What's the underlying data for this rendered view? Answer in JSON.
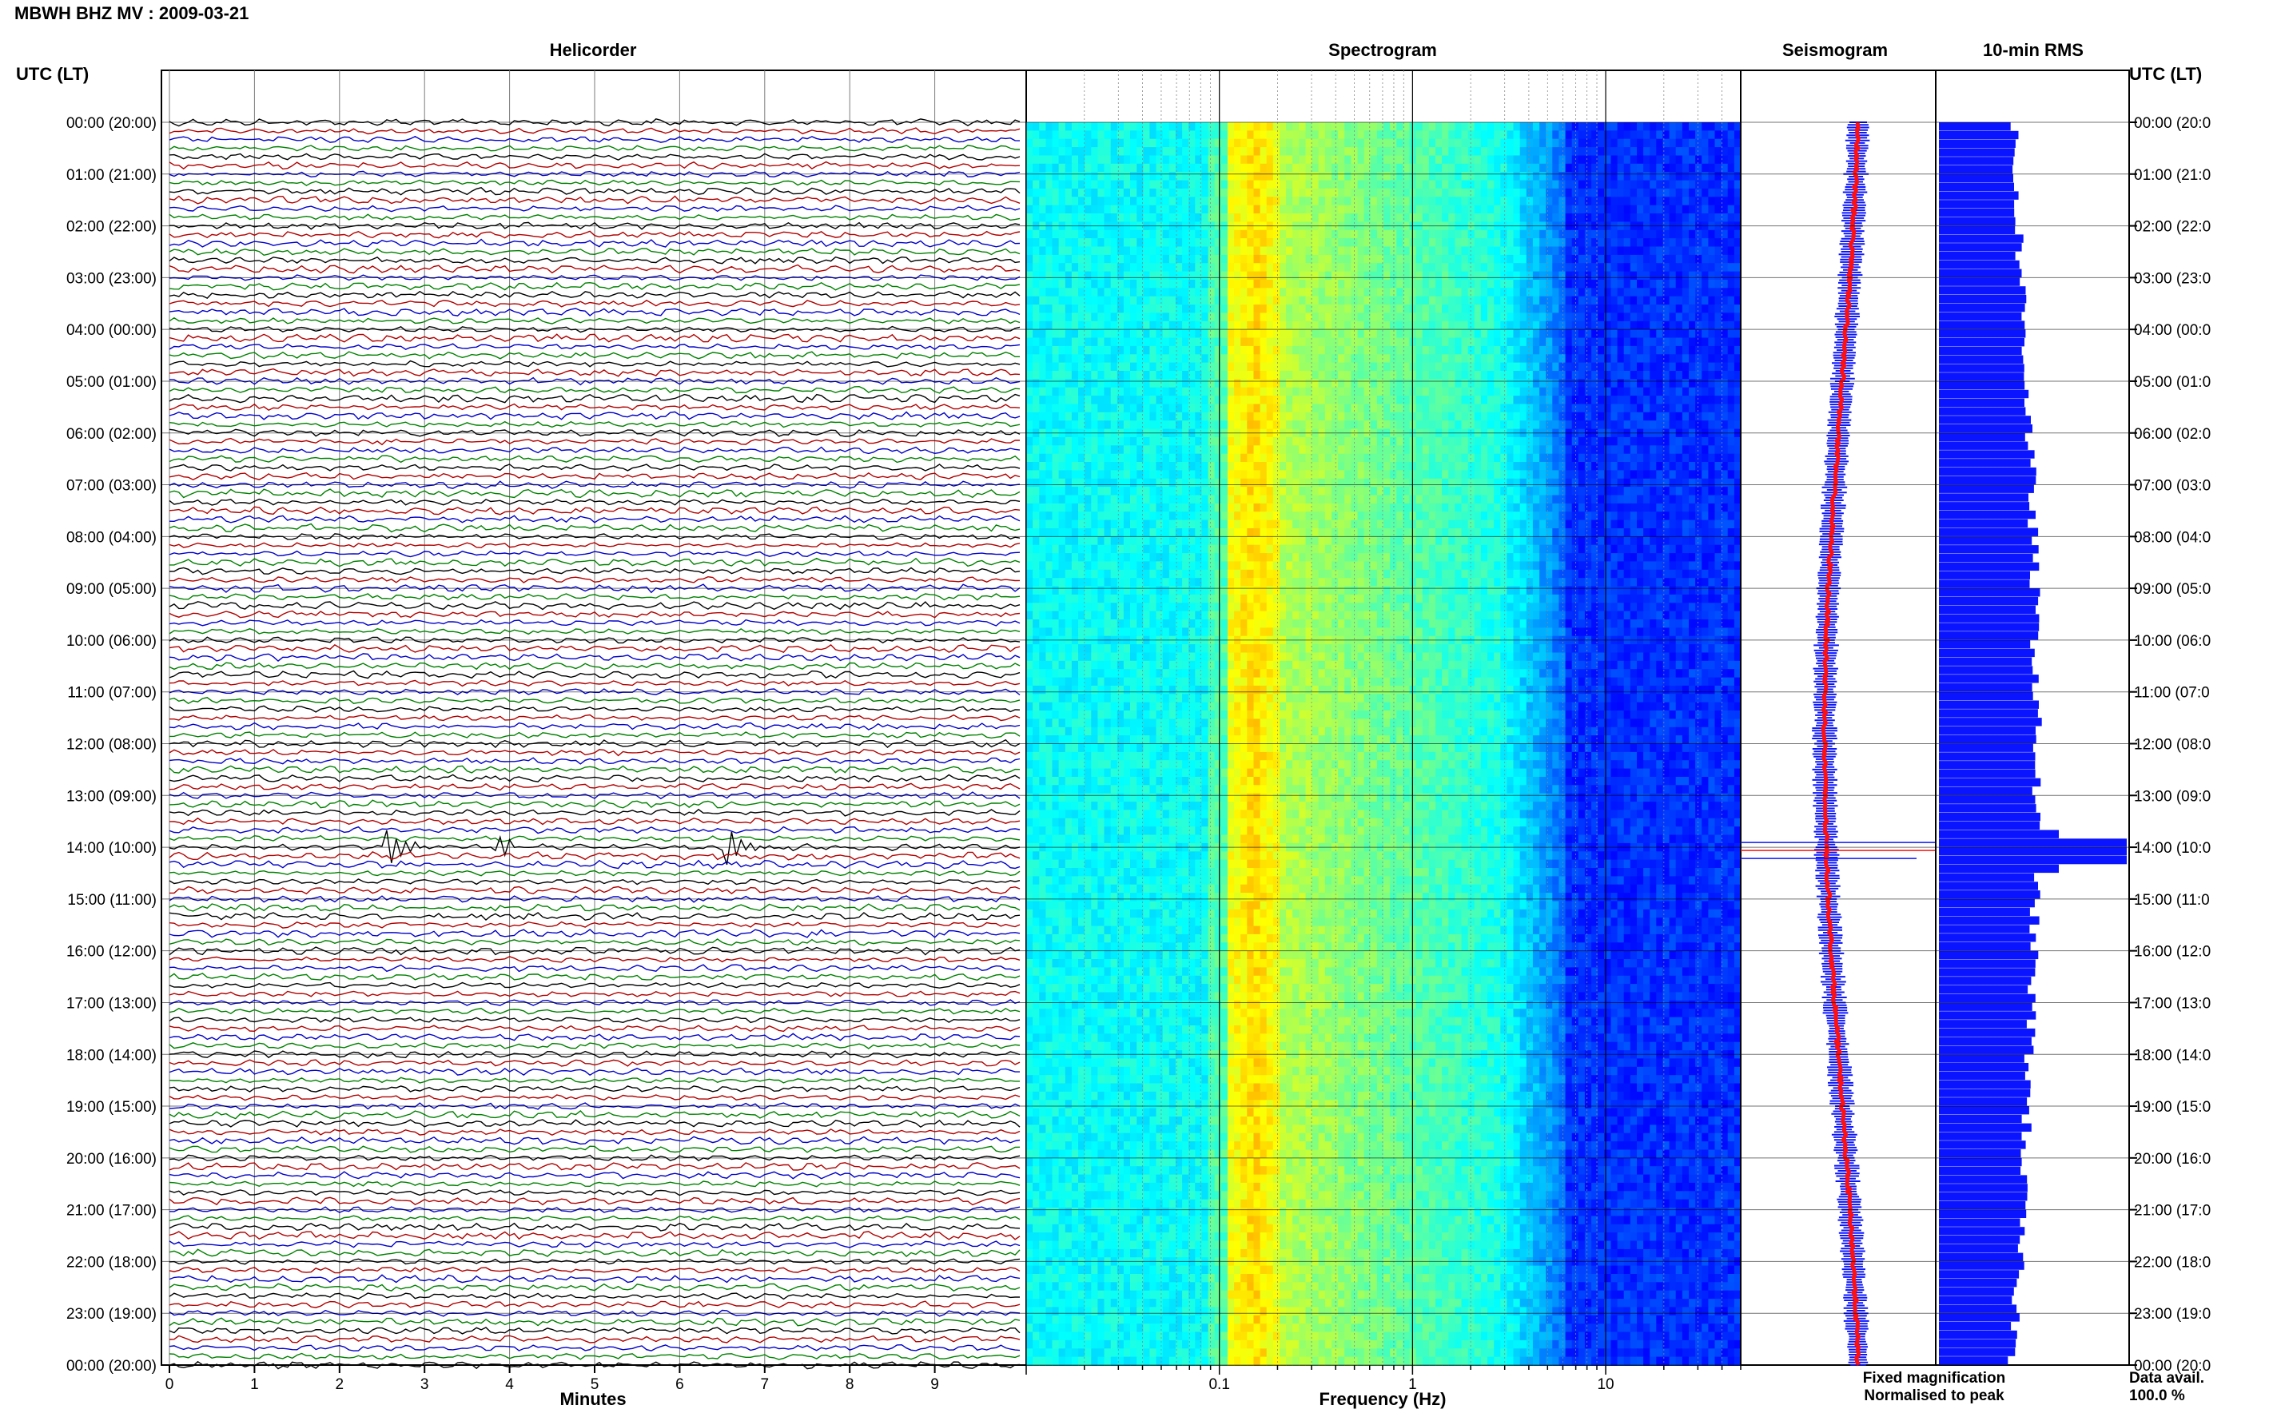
{
  "header": {
    "title": "MBWH BHZ MV : 2009-03-21",
    "utc_label_left": "UTC (LT)",
    "utc_label_right": "UTC (LT)"
  },
  "panels": {
    "helicorder": "Helicorder",
    "spectrogram": "Spectrogram",
    "seismogram": "Seismogram",
    "rms": "10-min RMS"
  },
  "footer": {
    "minutes_label": "Minutes",
    "frequency_label": "Frequency (Hz)",
    "legend_fixed": "Fixed magnification",
    "legend_normalised": "Normalised to peak",
    "data_avail_label": "Data avail.",
    "data_avail_value": "100.0 %"
  },
  "colors": {
    "fixed": "#0a14ff",
    "normalised": "#ff1010",
    "trace_cycle": [
      "#000000",
      "#b00000",
      "#0000c8",
      "#008000"
    ]
  },
  "chart_data": [
    {
      "type": "line",
      "title": "Helicorder",
      "xlabel": "Minutes",
      "x_ticks": [
        "0",
        "1",
        "2",
        "3",
        "4",
        "5",
        "6",
        "7",
        "8",
        "9"
      ],
      "xlim": [
        0,
        10
      ],
      "y_ticks_left": [
        "00:00 (20:00)",
        "01:00 (21:00)",
        "02:00 (22:00)",
        "03:00 (23:00)",
        "04:00 (00:00)",
        "05:00 (01:00)",
        "06:00 (02:00)",
        "07:00 (03:00)",
        "08:00 (04:00)",
        "09:00 (05:00)",
        "10:00 (06:00)",
        "11:00 (07:00)",
        "12:00 (08:00)",
        "13:00 (09:00)",
        "14:00 (10:00)",
        "15:00 (11:00)",
        "16:00 (12:00)",
        "17:00 (13:00)",
        "18:00 (14:00)",
        "19:00 (15:00)",
        "20:00 (16:00)",
        "21:00 (17:00)",
        "22:00 (18:00)",
        "23:00 (19:00)",
        "00:00 (20:00)"
      ],
      "y_ticks_right": [
        "00:00 (20:0",
        "01:00 (21:0",
        "02:00 (22:0",
        "03:00 (23:0",
        "04:00 (00:0",
        "05:00 (01:0",
        "06:00 (02:0",
        "07:00 (03:0",
        "08:00 (04:0",
        "09:00 (05:0",
        "10:00 (06:0",
        "11:00 (07:0",
        "12:00 (08:0",
        "13:00 (09:0",
        "14:00 (10:0",
        "15:00 (11:0",
        "16:00 (12:0",
        "17:00 (13:0",
        "18:00 (14:0",
        "19:00 (15:0",
        "20:00 (16:0",
        "21:00 (17:0",
        "22:00 (18:0",
        "23:00 (19:0",
        "00:00 (20:0"
      ],
      "traces_per_hour": 6,
      "events": [
        {
          "hour": 14.0,
          "minute": 2.6,
          "amplitude": 0.9
        },
        {
          "hour": 14.0,
          "minute": 3.9,
          "amplitude": 2.6
        },
        {
          "hour": 14.0,
          "minute": 6.6,
          "amplitude": 0.8
        }
      ]
    },
    {
      "type": "heatmap",
      "title": "Spectrogram",
      "xlabel": "Frequency (Hz)",
      "x_scale": "log",
      "xlim": [
        0.01,
        50
      ],
      "x_ticks": [
        "0.1",
        "1",
        "10"
      ],
      "colormap": "jet"
    },
    {
      "type": "line",
      "title": "Seismogram",
      "series": [
        {
          "name": "Fixed magnification",
          "color": "#0a14ff"
        },
        {
          "name": "Normalised to peak",
          "color": "#ff1010"
        }
      ]
    },
    {
      "type": "bar",
      "title": "10-min RMS",
      "orientation": "horizontal",
      "peak_hour": 14.0
    }
  ]
}
